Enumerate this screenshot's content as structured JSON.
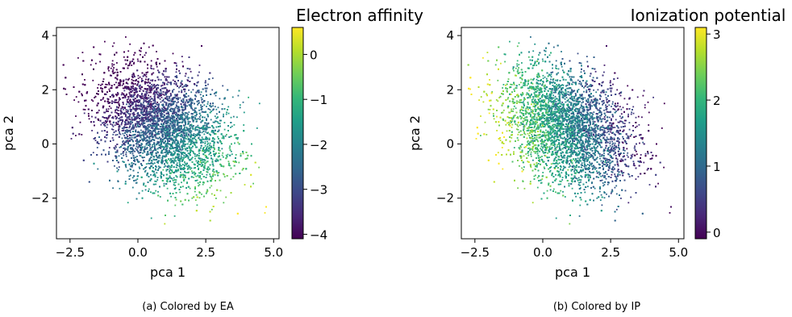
{
  "figure": {
    "captions": [
      "(a) Colored by EA",
      "(b) Colored by IP"
    ]
  },
  "chart_data": [
    {
      "type": "scatter",
      "title": "",
      "xlabel": "pca 1",
      "ylabel": "pca 2",
      "xlim": [
        -3.0,
        5.2
      ],
      "ylim": [
        -3.5,
        4.3
      ],
      "xticks": [
        -2.5,
        0.0,
        2.5,
        5.0
      ],
      "xtick_labels": [
        "−2.5",
        "0.0",
        "2.5",
        "5.0"
      ],
      "yticks": [
        -2,
        0,
        2,
        4
      ],
      "ytick_labels": [
        "−2",
        "0",
        "2",
        "4"
      ],
      "grid": false,
      "colormap": "viridis",
      "colorbar": {
        "title": "Electron affinity",
        "range": [
          -4.1,
          0.6
        ],
        "ticks": [
          -4,
          -3,
          -2,
          -1,
          0
        ],
        "tick_labels": [
          "−4",
          "−3",
          "−2",
          "−1",
          "0"
        ]
      },
      "points": {
        "count": 9000,
        "center": [
          0.9,
          0.6
        ],
        "spread": [
          1.2,
          1.1
        ],
        "correlation": -0.32,
        "color_trend": "values increase toward lower-right (high pca 1, low pca 2); lowest at upper-left"
      }
    },
    {
      "type": "scatter",
      "title": "",
      "xlabel": "pca 1",
      "ylabel": "pca 2",
      "xlim": [
        -3.0,
        5.2
      ],
      "ylim": [
        -3.5,
        4.3
      ],
      "xticks": [
        -2.5,
        0.0,
        2.5,
        5.0
      ],
      "xtick_labels": [
        "−2.5",
        "0.0",
        "2.5",
        "5.0"
      ],
      "yticks": [
        -2,
        0,
        2,
        4
      ],
      "ytick_labels": [
        "−2",
        "0",
        "2",
        "4"
      ],
      "grid": false,
      "colormap": "viridis",
      "colorbar": {
        "title": "Ionization potential",
        "range": [
          -0.1,
          3.1
        ],
        "ticks": [
          0,
          1,
          2,
          3
        ],
        "tick_labels": [
          "0",
          "1",
          "2",
          "3"
        ]
      },
      "points": {
        "count": 9000,
        "center": [
          0.9,
          0.6
        ],
        "spread": [
          1.2,
          1.1
        ],
        "correlation": -0.32,
        "color_trend": "values increase toward left (low pca 1); highest at lower-left, lowest at right"
      }
    }
  ]
}
